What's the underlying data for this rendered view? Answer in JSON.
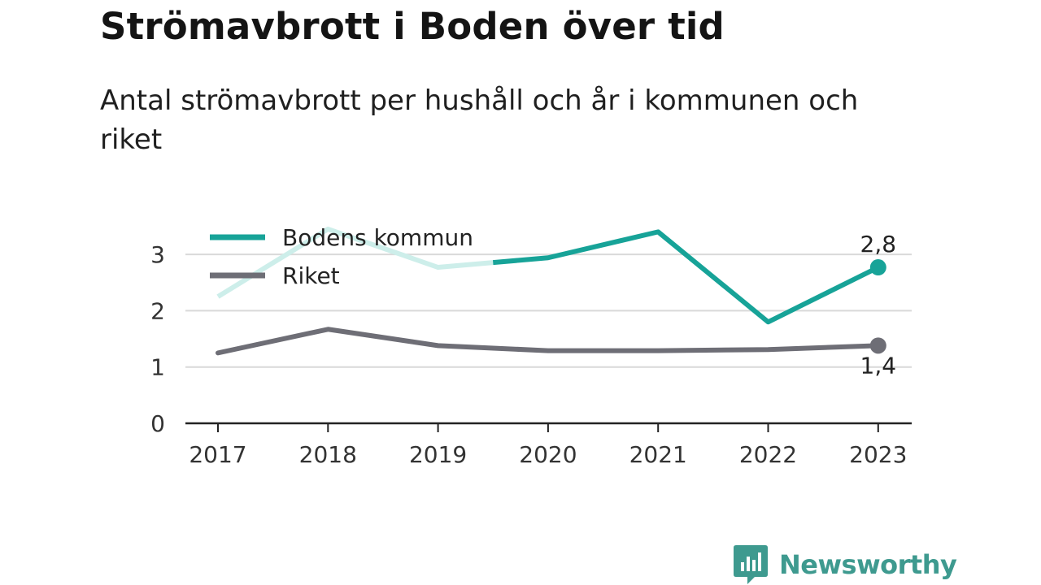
{
  "header": {
    "title": "Strömavbrott i Boden över tid",
    "subtitle": "Antal strömavbrott per hushåll och år i kommunen och riket"
  },
  "brand": {
    "name": "Newsworthy",
    "color": "#3e9a8f",
    "icon": "newsworthy-logo-icon"
  },
  "colors": {
    "bodens": "#17a398",
    "bodens_faded": "#cdeeea",
    "riket": "#6e6e76",
    "grid": "#d9d9d9",
    "axis": "#222222"
  },
  "chart_data": {
    "type": "line",
    "x": [
      "2017",
      "2018",
      "2019",
      "2020",
      "2021",
      "2022",
      "2023"
    ],
    "ylim": [
      0,
      3.5
    ],
    "yticks": [
      "0",
      "1",
      "2",
      "3"
    ],
    "grid": true,
    "legend_position": "top-left",
    "series": [
      {
        "name": "Bodens kommun",
        "values": [
          2.25,
          3.45,
          2.77,
          2.94,
          3.4,
          1.8,
          2.77
        ],
        "faded_until_x": 2.5,
        "end_label": "2,8"
      },
      {
        "name": "Riket",
        "values": [
          1.25,
          1.67,
          1.38,
          1.29,
          1.29,
          1.31,
          1.38
        ],
        "end_label": "1,4"
      }
    ]
  }
}
